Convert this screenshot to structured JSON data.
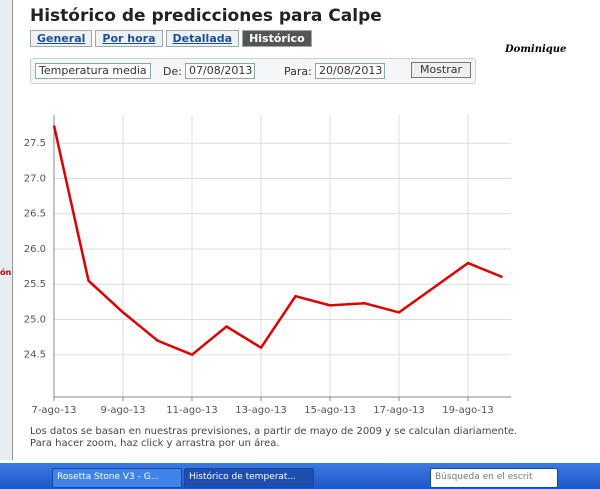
{
  "header": {
    "title": "Histórico de predicciones para Calpe"
  },
  "tabs": [
    "General",
    "Por hora",
    "Detallada",
    "Histórico"
  ],
  "signature": "Dominique",
  "sidebar": {
    "fragment": "ón"
  },
  "form": {
    "variable": "Temperatura media",
    "from_label": "De:",
    "from_date": "07/08/2013",
    "to_label": "Para:",
    "to_date": "20/08/2013",
    "button": "Mostrar"
  },
  "chart_data": {
    "type": "line",
    "categories": [
      "7-ago-13",
      null,
      "9-ago-13",
      null,
      "11-ago-13",
      null,
      "13-ago-13",
      null,
      "15-ago-13",
      null,
      "17-ago-13",
      null,
      "19-ago-13",
      null
    ],
    "series": [
      {
        "color": "#dd0000",
        "values": [
          27.75,
          25.55,
          25.1,
          24.7,
          24.5,
          24.9,
          24.6,
          25.33,
          25.2,
          25.23,
          25.1,
          25.45,
          25.8,
          25.6
        ]
      }
    ],
    "ylim": [
      23.9,
      27.9
    ],
    "yticks": [
      24.5,
      {
        "value": 25,
        "label": "25.0"
      },
      25.5,
      {
        "value": 26,
        "label": "26.0"
      },
      26.5,
      {
        "value": 27,
        "label": "27.0"
      },
      27.5
    ],
    "grid": true
  },
  "notes": [
    "Los datos se basan en nuestras previsiones, a partir de mayo de 2009 y se calculan diariamente.",
    "Para hacer zoom, haz click y arrastra por un área."
  ],
  "taskbar": {
    "items": [
      "Rosetta Stone V3 - G...",
      "Histórico de temperat..."
    ],
    "search": "Búsqueda en el escrit"
  }
}
